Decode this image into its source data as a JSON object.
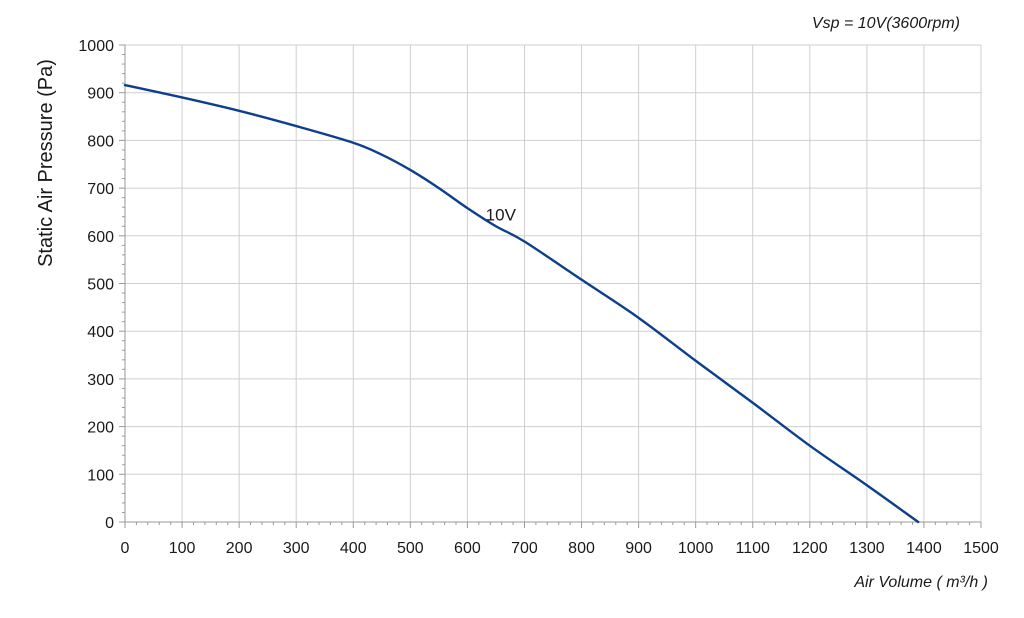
{
  "chart_data": {
    "type": "line",
    "title": "",
    "annotation": "Vsp = 10V(3600rpm)",
    "xlabel": "Air Volume ( m³/h )",
    "ylabel": "Static Air Pressure  (Pa)",
    "xlim": [
      0,
      1500
    ],
    "ylim": [
      0,
      1000
    ],
    "xticks": [
      0,
      100,
      200,
      300,
      400,
      500,
      600,
      700,
      800,
      900,
      1000,
      1100,
      1200,
      1300,
      1400,
      1500
    ],
    "yticks": [
      0,
      100,
      200,
      300,
      400,
      500,
      600,
      700,
      800,
      900,
      1000
    ],
    "grid": true,
    "line_color": "#0d3f8c",
    "series": [
      {
        "name": "10V",
        "x": [
          0,
          100,
          200,
          300,
          400,
          450,
          500,
          550,
          600,
          650,
          700,
          800,
          900,
          1000,
          1100,
          1200,
          1300,
          1390
        ],
        "y": [
          916,
          890,
          862,
          830,
          795,
          770,
          738,
          700,
          658,
          620,
          588,
          508,
          428,
          338,
          250,
          160,
          77,
          0
        ]
      }
    ]
  }
}
